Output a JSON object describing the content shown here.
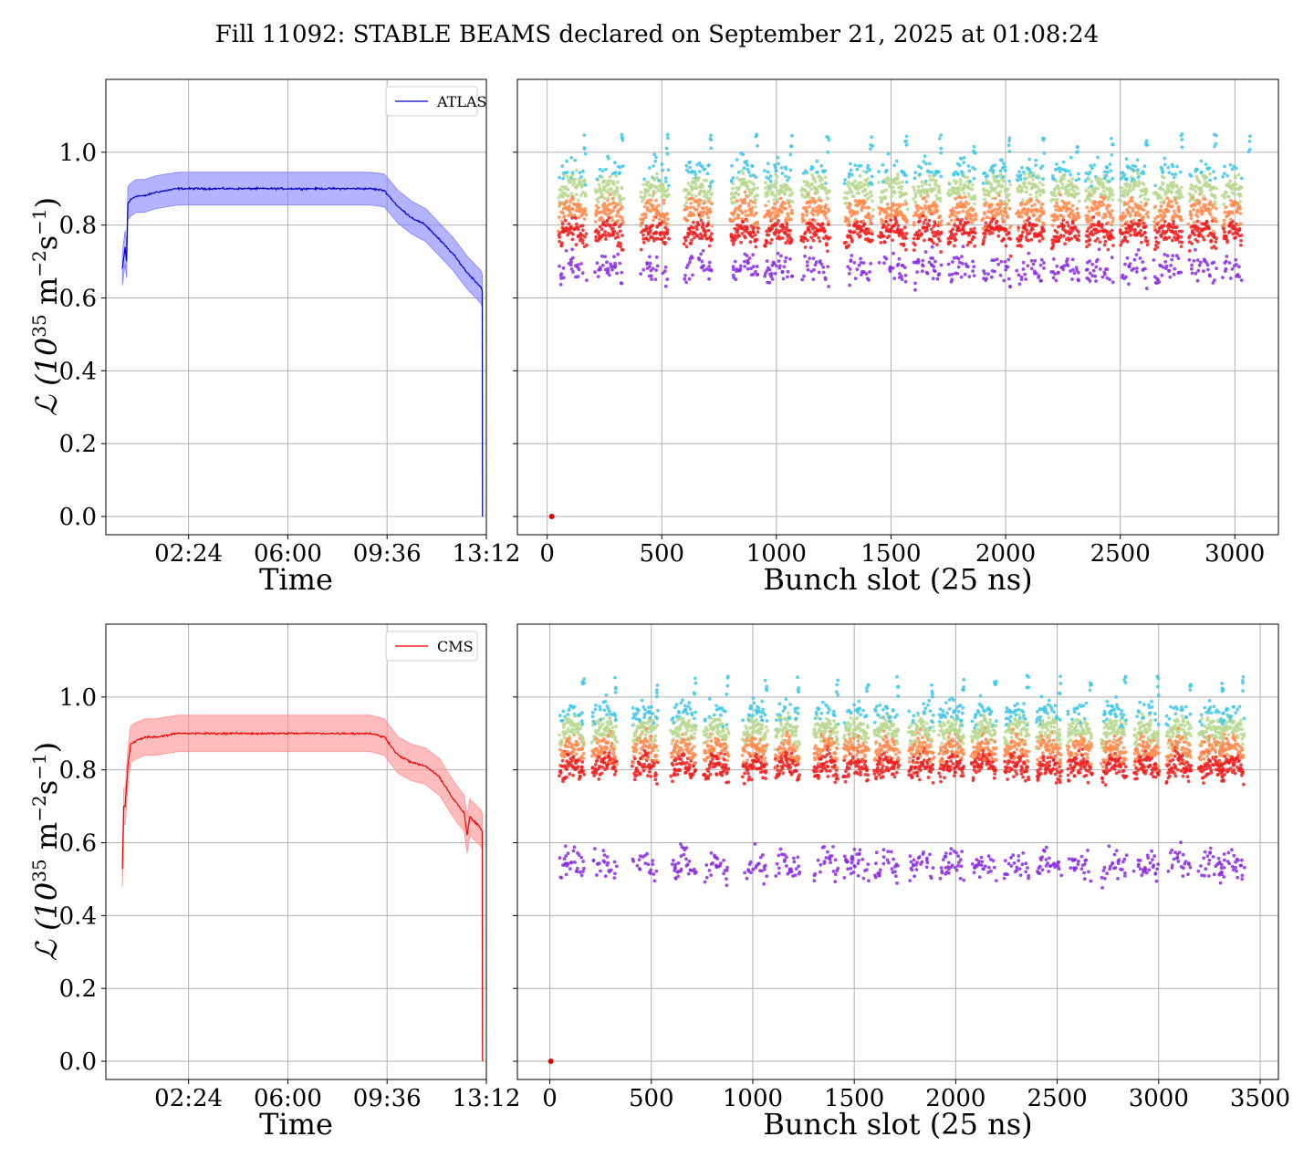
{
  "figure": {
    "title": "Fill 11092: STABLE BEAMS declared on September 21, 2025 at 01:08:24",
    "ylabel_text": "ℒ (10",
    "ylabel_exp1": "35",
    "ylabel_mid": " m",
    "ylabel_exp2": "−2",
    "ylabel_s": "s",
    "ylabel_exp3": "−1",
    "ylabel_end": ")"
  },
  "chart_data": [
    {
      "type": "line",
      "name": "atlas-time",
      "legend": "ATLAS",
      "color": "#0000cc",
      "band_color": "#8080ff",
      "xlabel": "Time",
      "x_ticks": [
        "02:24",
        "06:00",
        "09:36",
        "13:12"
      ],
      "x_tick_values": [
        2.4,
        6.0,
        9.6,
        13.2
      ],
      "xlim": [
        -0.6,
        13.2
      ],
      "ylim": [
        -0.05,
        1.2
      ],
      "y_ticks": [
        "0.0",
        "0.2",
        "0.4",
        "0.6",
        "0.8",
        "1.0"
      ],
      "y_tick_values": [
        0.0,
        0.2,
        0.4,
        0.6,
        0.8,
        1.0
      ],
      "x": [
        0.0,
        0.1,
        0.15,
        0.2,
        0.3,
        0.5,
        0.8,
        1.2,
        2.0,
        3.0,
        4.0,
        5.0,
        6.0,
        7.0,
        8.0,
        9.0,
        9.5,
        10.0,
        10.5,
        11.0,
        11.5,
        12.0,
        12.5,
        13.0,
        13.05,
        13.06
      ],
      "y": [
        0.68,
        0.74,
        0.7,
        0.86,
        0.87,
        0.88,
        0.88,
        0.89,
        0.9,
        0.9,
        0.9,
        0.9,
        0.9,
        0.9,
        0.9,
        0.9,
        0.895,
        0.85,
        0.82,
        0.8,
        0.76,
        0.72,
        0.67,
        0.63,
        0.62,
        0.0
      ],
      "band_halfwidth": 0.045
    },
    {
      "type": "scatter",
      "name": "atlas-bunch",
      "xlabel": "Bunch slot (25 ns)",
      "x_ticks": [
        "0",
        "500",
        "1000",
        "1500",
        "2000",
        "2500",
        "3000"
      ],
      "x_tick_values": [
        0,
        500,
        1000,
        1500,
        2000,
        2500,
        3000
      ],
      "xlim": [
        -130,
        3190
      ],
      "ylim": [
        -0.05,
        1.2
      ],
      "y_ticks": [
        "0.0",
        "0.2",
        "0.4",
        "0.6",
        "0.8",
        "1.0"
      ],
      "y_tick_values": [
        0.0,
        0.2,
        0.4,
        0.6,
        0.8,
        1.0
      ],
      "bunch_range": [
        50,
        3030
      ],
      "train_starts": [
        50,
        210,
        410,
        600,
        800,
        950,
        1110,
        1300,
        1450,
        1600,
        1750,
        1900,
        2050,
        2200,
        2350,
        2500,
        2650,
        2800,
        2950
      ],
      "train_length": 120,
      "levels": [
        {
          "name": "top",
          "color": "#40c8e8",
          "center": 0.93,
          "spread": 0.05
        },
        {
          "name": "upper",
          "color": "#b8d890",
          "center": 0.88,
          "spread": 0.05
        },
        {
          "name": "mid",
          "color": "#ff8c50",
          "center": 0.82,
          "spread": 0.05
        },
        {
          "name": "red",
          "color": "#ee2020",
          "center": 0.76,
          "spread": 0.05
        },
        {
          "name": "violet",
          "color": "#8a2be2",
          "center": 0.66,
          "spread": 0.06
        }
      ],
      "origin_point": {
        "x": 20,
        "y": 0.0,
        "color": "#dd0000"
      }
    },
    {
      "type": "line",
      "name": "cms-time",
      "legend": "CMS",
      "color": "#ee0000",
      "band_color": "#ff9090",
      "xlabel": "Time",
      "x_ticks": [
        "02:24",
        "06:00",
        "09:36",
        "13:12"
      ],
      "x_tick_values": [
        2.4,
        6.0,
        9.6,
        13.2
      ],
      "xlim": [
        -0.6,
        13.2
      ],
      "ylim": [
        -0.05,
        1.2
      ],
      "y_ticks": [
        "0.0",
        "0.2",
        "0.4",
        "0.6",
        "0.8",
        "1.0"
      ],
      "y_tick_values": [
        0.0,
        0.2,
        0.4,
        0.6,
        0.8,
        1.0
      ],
      "x": [
        0.0,
        0.05,
        0.1,
        0.2,
        0.3,
        0.5,
        0.8,
        1.2,
        2.0,
        3.0,
        4.0,
        5.0,
        6.0,
        7.0,
        8.0,
        9.0,
        9.5,
        10.0,
        10.5,
        11.0,
        11.5,
        12.0,
        12.4,
        12.5,
        12.6,
        13.0,
        13.05,
        13.06
      ],
      "y": [
        0.53,
        0.7,
        0.7,
        0.81,
        0.87,
        0.88,
        0.89,
        0.89,
        0.9,
        0.9,
        0.9,
        0.9,
        0.9,
        0.9,
        0.9,
        0.9,
        0.89,
        0.84,
        0.82,
        0.81,
        0.78,
        0.72,
        0.68,
        0.62,
        0.67,
        0.64,
        0.63,
        0.0
      ],
      "band_halfwidth": 0.05
    },
    {
      "type": "scatter",
      "name": "cms-bunch",
      "xlabel": "Bunch slot (25 ns)",
      "x_ticks": [
        "0",
        "500",
        "1000",
        "1500",
        "2000",
        "2500",
        "3000",
        "3500"
      ],
      "x_tick_values": [
        0,
        500,
        1000,
        1500,
        2000,
        2500,
        3000,
        3500
      ],
      "xlim": [
        -160,
        3590
      ],
      "ylim": [
        -0.05,
        1.2
      ],
      "y_ticks": [
        "0.0",
        "0.2",
        "0.4",
        "0.6",
        "0.8",
        "1.0"
      ],
      "y_tick_values": [
        0.0,
        0.2,
        0.4,
        0.6,
        0.8,
        1.0
      ],
      "bunch_range": [
        50,
        3420
      ],
      "train_starts": [
        50,
        210,
        410,
        600,
        760,
        950,
        1110,
        1300,
        1450,
        1600,
        1770,
        1920,
        2080,
        2240,
        2400,
        2550,
        2720,
        2880,
        3040,
        3200,
        3300
      ],
      "train_length": 120,
      "levels": [
        {
          "name": "top",
          "color": "#40c8e8",
          "center": 0.94,
          "spread": 0.05
        },
        {
          "name": "upper",
          "color": "#b8d890",
          "center": 0.89,
          "spread": 0.05
        },
        {
          "name": "mid",
          "color": "#ff8c50",
          "center": 0.84,
          "spread": 0.05
        },
        {
          "name": "red",
          "color": "#ee2020",
          "center": 0.79,
          "spread": 0.05
        },
        {
          "name": "violet",
          "color": "#8a2be2",
          "center": 0.52,
          "spread": 0.06
        }
      ],
      "origin_point": {
        "x": 5,
        "y": 0.0,
        "color": "#dd0000"
      }
    }
  ]
}
